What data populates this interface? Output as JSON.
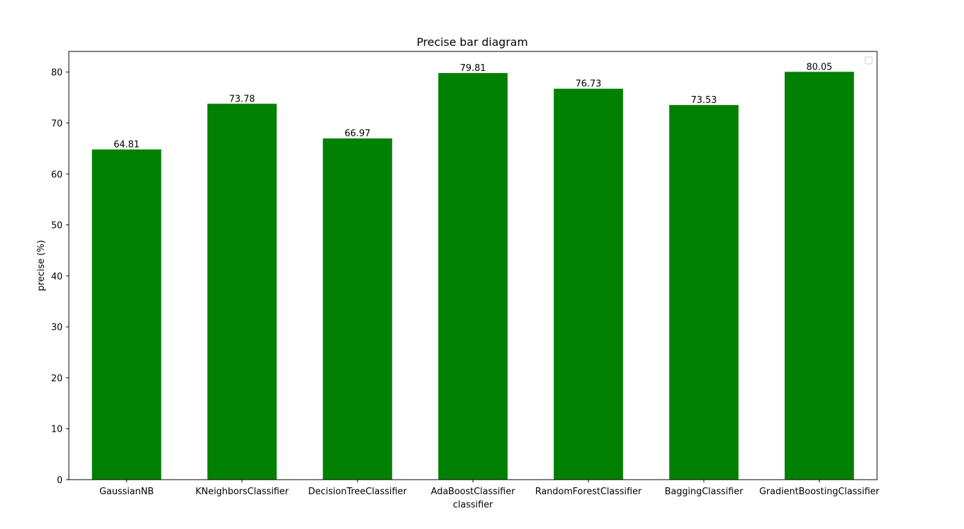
{
  "chart_data": {
    "type": "bar",
    "title": "Precise bar diagram",
    "xlabel": "classifier",
    "ylabel": "precise (%)",
    "categories": [
      "GaussianNB",
      "KNeighborsClassifier",
      "DecisionTreeClassifier",
      "AdaBoostClassifier",
      "RandomForestClassifier",
      "BaggingClassifier",
      "GradientBoostingClassifier"
    ],
    "values": [
      64.81,
      73.78,
      66.97,
      79.81,
      76.73,
      73.53,
      80.05
    ],
    "data_labels": [
      "64.81",
      "73.78",
      "66.97",
      "79.81",
      "76.73",
      "73.53",
      "80.05"
    ],
    "ylim": [
      0,
      84.05
    ],
    "yticks": [
      0,
      10,
      20,
      30,
      40,
      50,
      60,
      70,
      80
    ],
    "grid": false,
    "legend": "upper right, empty",
    "bar_color": "#008000"
  }
}
